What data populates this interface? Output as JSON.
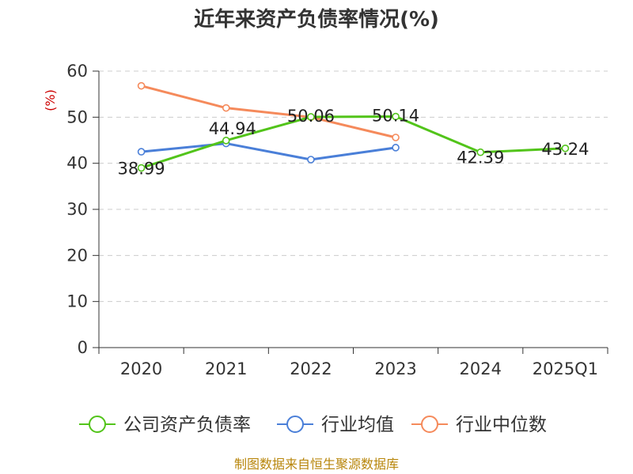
{
  "chart_data": {
    "type": "line",
    "title": "近年来资产负债率情况(%)",
    "ylabel": "(%)",
    "xlabel": "",
    "categories": [
      "2020",
      "2021",
      "2022",
      "2023",
      "2024",
      "2025Q1"
    ],
    "ylim": [
      0,
      60
    ],
    "yticks": [
      0,
      10,
      20,
      30,
      40,
      50,
      60
    ],
    "grid": true,
    "legend_position": "bottom",
    "series": [
      {
        "name": "公司资产负债率",
        "color": "#52c41a",
        "values": [
          38.99,
          44.94,
          50.06,
          50.14,
          42.39,
          43.24
        ],
        "labels": [
          "38.99",
          "44.94",
          "50.06",
          "50.14",
          "42.39",
          "43.24"
        ]
      },
      {
        "name": "行业均值",
        "color": "#4a7fd8",
        "values": [
          42.5,
          44.3,
          40.8,
          43.4,
          null,
          null
        ]
      },
      {
        "name": "行业中位数",
        "color": "#f58a5b",
        "values": [
          56.8,
          52.0,
          50.0,
          45.6,
          null,
          null
        ]
      }
    ],
    "source": "制图数据来自恒生聚源数据库"
  }
}
